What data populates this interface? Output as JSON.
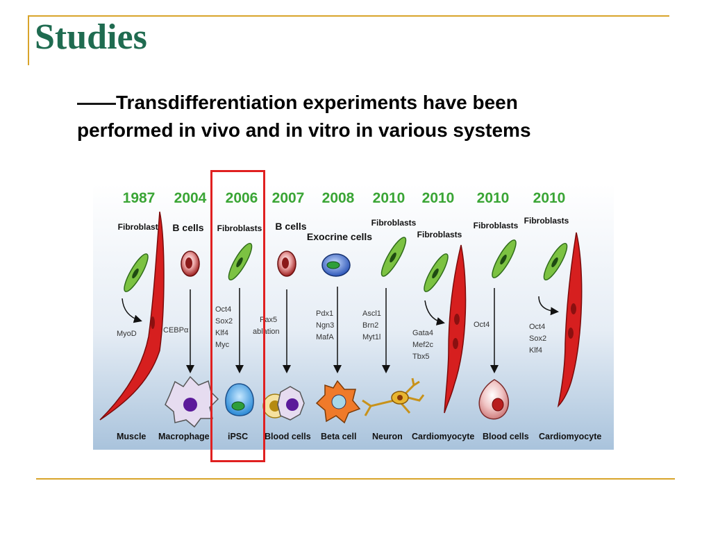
{
  "slide": {
    "title": "Studies",
    "subtitle_line1": "——Transdifferentiation experiments have been",
    "subtitle_line2": "performed in vivo and in vitro in various systems"
  },
  "colors": {
    "title": "#1f6b50",
    "accent_line": "#d8a42a",
    "year": "#3aa535",
    "highlight_box": "#e02020",
    "fibroblast": "#7cc242",
    "muscle": "#d61f1f"
  },
  "figure": {
    "columns": [
      {
        "year": "1987",
        "source": "Fibroblasts",
        "factors": [
          "MyoD"
        ],
        "target": "Muscle"
      },
      {
        "year": "2004",
        "source": "B cells",
        "factors": [
          "CEBPα"
        ],
        "target": "Macrophage"
      },
      {
        "year": "2006",
        "source": "Fibroblasts",
        "factors": [
          "Oct4",
          "Sox2",
          "Klf4",
          "Myc"
        ],
        "target": "iPSC"
      },
      {
        "year": "2007",
        "source": "B cells",
        "factors": [
          "Pax5",
          "ablation"
        ],
        "target": "Blood cells"
      },
      {
        "year": "2008",
        "source": "Exocrine cells",
        "factors": [
          "Pdx1",
          "Ngn3",
          "MafA"
        ],
        "target": "Beta cell"
      },
      {
        "year": "2010",
        "source": "Fibroblasts",
        "factors": [
          "Ascl1",
          "Brn2",
          "Myt1l"
        ],
        "target": "Neuron"
      },
      {
        "year": "2010",
        "source": "Fibroblasts",
        "factors": [
          "Gata4",
          "Mef2c",
          "Tbx5"
        ],
        "target": "Cardiomyocyte"
      },
      {
        "year": "2010",
        "source": "Fibroblasts",
        "factors": [
          "Oct4"
        ],
        "target": "Blood cells"
      },
      {
        "year": "2010",
        "source": "Fibroblasts",
        "factors": [
          "Oct4",
          "Sox2",
          "Klf4"
        ],
        "target": "Cardiomyocyte"
      }
    ]
  }
}
